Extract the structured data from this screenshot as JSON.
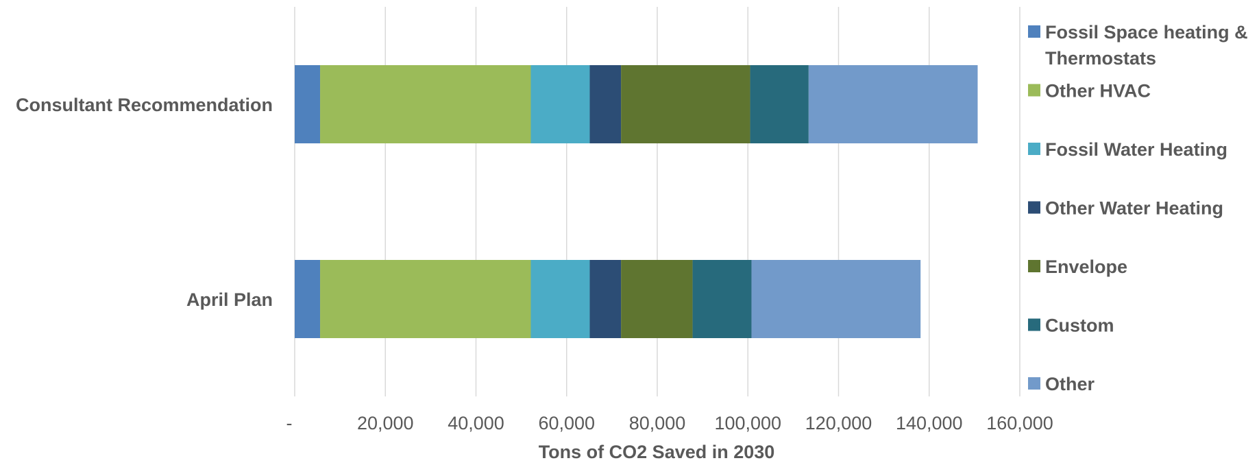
{
  "chart_data": {
    "type": "bar",
    "orientation": "horizontal",
    "stacked": true,
    "categories": [
      "Consultant Recommendation",
      "April Plan"
    ],
    "series": [
      {
        "name": "Fossil Space heating & Thermostats",
        "values": [
          5600,
          5600
        ],
        "color": "#4f81bd"
      },
      {
        "name": "Other HVAC",
        "values": [
          46500,
          46500
        ],
        "color": "#9bbb59"
      },
      {
        "name": "Fossil Water Heating",
        "values": [
          13000,
          13000
        ],
        "color": "#4bacc6"
      },
      {
        "name": "Other Water Heating",
        "values": [
          6900,
          6900
        ],
        "color": "#2c4d75"
      },
      {
        "name": "Envelope",
        "values": [
          28500,
          15800
        ],
        "color": "#5f7530"
      },
      {
        "name": "Custom",
        "values": [
          12900,
          13000
        ],
        "color": "#276a7c"
      },
      {
        "name": "Other",
        "values": [
          37300,
          37300
        ],
        "color": "#729aca"
      }
    ],
    "xlabel": "Tons of CO2 Saved in 2030",
    "ylabel": "",
    "xlim": [
      0,
      160000
    ],
    "x_ticks": [
      0,
      20000,
      40000,
      60000,
      80000,
      100000,
      120000,
      140000,
      160000
    ],
    "x_tick_labels": [
      "-",
      "20,000",
      "40,000",
      "60,000",
      "80,000",
      "100,000",
      "120,000",
      "140,000",
      "160,000"
    ],
    "grid": true,
    "legend_position": "right"
  }
}
